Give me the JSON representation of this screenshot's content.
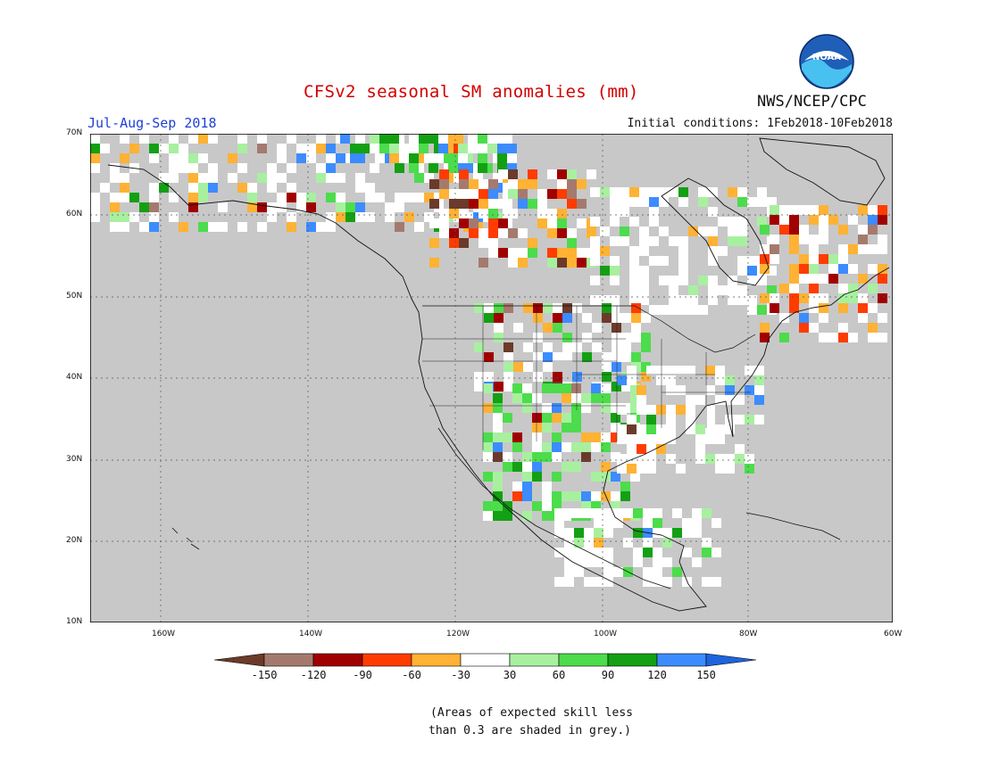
{
  "title": "CFSv2 seasonal SM anomalies (mm)",
  "period": "Jul-Aug-Sep 2018",
  "initial_conditions": "Initial conditions: 1Feb2018-10Feb2018",
  "agency": "NWS/NCEP/CPC",
  "logo_text": "NOAA",
  "map": {
    "lon_ticks": [
      "160W",
      "140W",
      "120W",
      "100W",
      "80W",
      "60W"
    ],
    "lat_ticks": [
      "70N",
      "60N",
      "50N",
      "40N",
      "30N",
      "20N",
      "10N"
    ],
    "background_color": "#c8c8c8"
  },
  "legend": {
    "labels": [
      "-150",
      "-120",
      "-90",
      "-60",
      "-30",
      "30",
      "60",
      "90",
      "120",
      "150"
    ],
    "colors": [
      "#6b3a2a",
      "#a57a6e",
      "#a00000",
      "#ff3c00",
      "#ffb233",
      "#ffffff",
      "#a8f0a0",
      "#4cdc4c",
      "#13a013",
      "#3c8cff",
      "#1e64dc"
    ]
  },
  "note_line1": "(Areas of expected skill less",
  "note_line2": "than 0.3 are shaded in grey.)"
}
